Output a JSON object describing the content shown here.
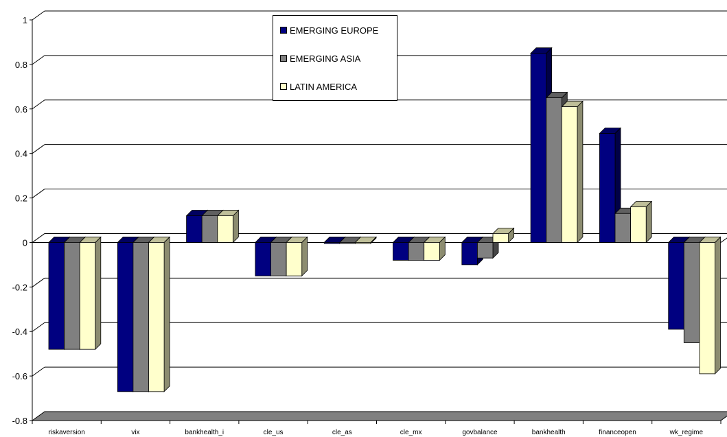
{
  "chart_data": {
    "type": "bar",
    "categories": [
      "riskaversion",
      "vix",
      "bankhealth_i",
      "cle_us",
      "cle_as",
      "cle_mx",
      "govbalance",
      "bankhealth",
      "financeopen",
      "wk_regime"
    ],
    "series": [
      {
        "name": "EMERGING EUROPE",
        "color": "#000080",
        "values": [
          -0.48,
          -0.67,
          0.12,
          -0.15,
          0.0,
          -0.08,
          -0.1,
          0.85,
          0.49,
          -0.39
        ]
      },
      {
        "name": "EMERGING ASIA",
        "color": "#808080",
        "values": [
          -0.48,
          -0.67,
          0.12,
          -0.15,
          0.0,
          -0.08,
          -0.07,
          0.65,
          0.13,
          -0.45
        ]
      },
      {
        "name": "LATIN AMERICA",
        "color": "#FFFFCC",
        "values": [
          -0.48,
          -0.67,
          0.12,
          -0.15,
          0.0,
          -0.08,
          0.04,
          0.61,
          0.16,
          -0.59
        ]
      }
    ],
    "yticks": [
      "1",
      "0.8",
      "0.6",
      "0.4",
      "0.2",
      "0",
      "-0.2",
      "-0.4",
      "-0.6",
      "-0.8"
    ],
    "ylim": [
      -0.8,
      1
    ],
    "grid": true,
    "legend_position": "top-center",
    "title": "",
    "xlabel": "",
    "ylabel": ""
  }
}
